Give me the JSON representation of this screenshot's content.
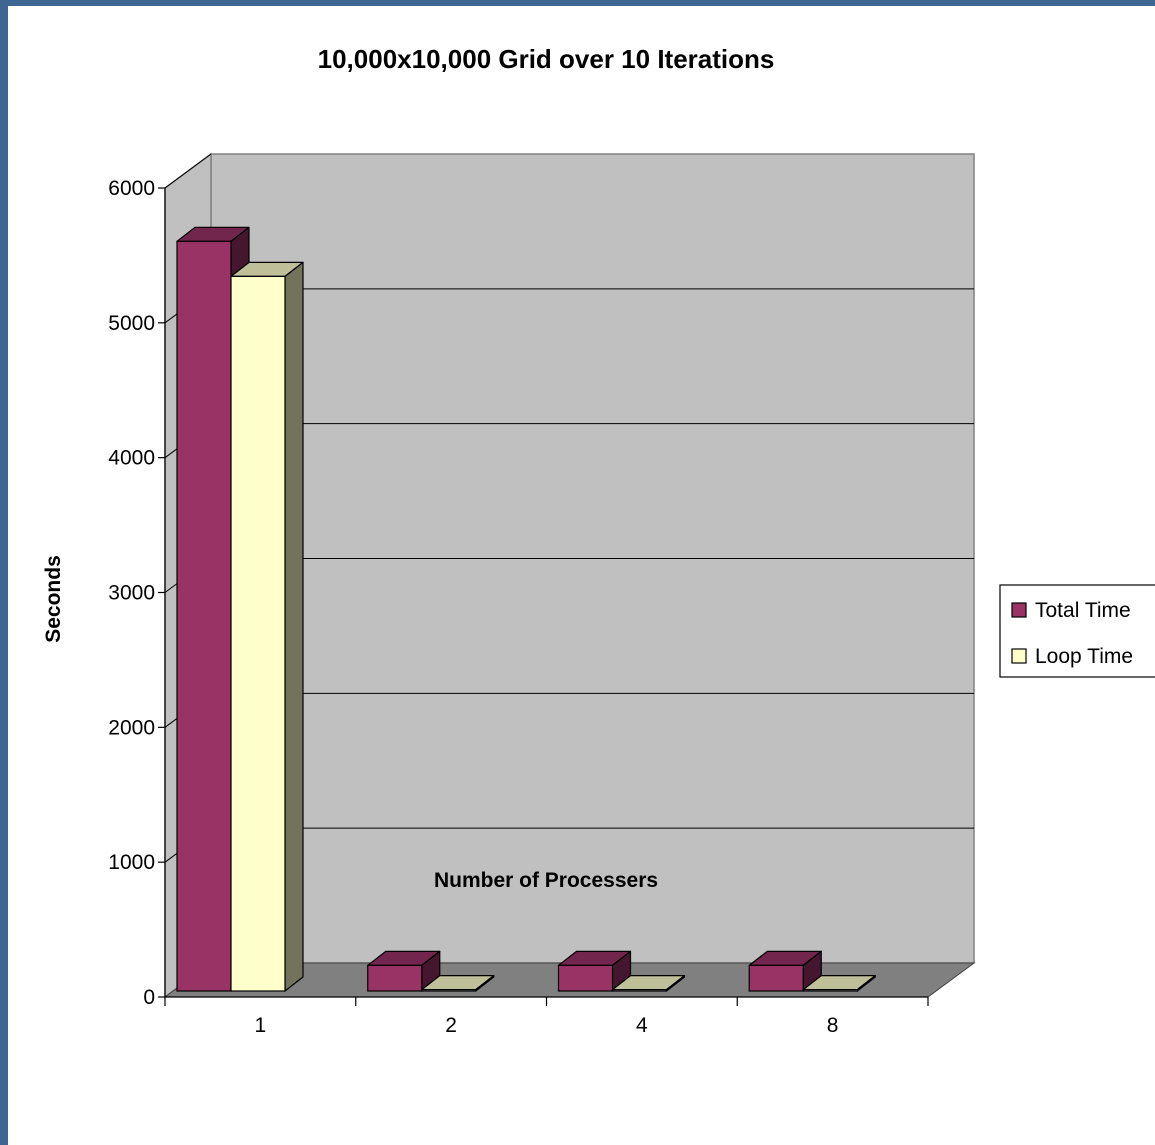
{
  "chart_data": {
    "type": "bar",
    "style": "3d-clustered-column",
    "title": "10,000x10,000 Grid over 10 Iterations",
    "xlabel": "Number of Processers",
    "ylabel": "Seconds",
    "categories": [
      "1",
      "2",
      "4",
      "8"
    ],
    "series": [
      {
        "name": "Total Time",
        "color": "#993366",
        "values": [
          5560,
          190,
          190,
          190
        ]
      },
      {
        "name": "Loop Time",
        "color": "#ffffcc",
        "values": [
          5300,
          10,
          10,
          10
        ]
      }
    ],
    "ylim": [
      0,
      6000
    ],
    "yticks": [
      "0",
      "1000",
      "2000",
      "3000",
      "4000",
      "5000",
      "6000"
    ],
    "grid": true,
    "legend_position": "right",
    "wall_color": "#c0c0c0",
    "floor_color": "#808080"
  }
}
